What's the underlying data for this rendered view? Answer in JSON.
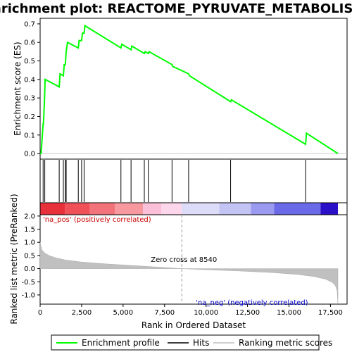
{
  "chart_data": {
    "type": "line",
    "title": "Enrichment plot: REACTOME_PYRUVATE_METABOLISM",
    "xlabel": "Rank in Ordered Dataset",
    "xlim": [
      0,
      18500
    ],
    "x_ticks": [
      0,
      2500,
      5000,
      7500,
      10000,
      12500,
      15000,
      17500
    ],
    "x_tick_labels": [
      "0",
      "2,500",
      "5,000",
      "7,500",
      "10,000",
      "12,500",
      "15,000",
      "17,500"
    ],
    "top_panel": {
      "ylabel": "Enrichment score (ES)",
      "ylim": [
        -0.03,
        0.73
      ],
      "y_ticks": [
        0.0,
        0.1,
        0.2,
        0.3,
        0.4,
        0.5,
        0.6,
        0.7
      ],
      "y_tick_labels": [
        "0.0",
        "0.1",
        "0.2",
        "0.3",
        "0.4",
        "0.5",
        "0.6",
        "0.7"
      ],
      "series": [
        {
          "name": "Enrichment profile",
          "color": "#00ff00",
          "x": [
            0,
            60,
            180,
            200,
            260,
            300,
            1150,
            1200,
            1400,
            1450,
            1520,
            1570,
            1650,
            2300,
            2350,
            2500,
            2550,
            2650,
            2700,
            4870,
            4920,
            5480,
            5530,
            6280,
            6330,
            6520,
            6570,
            7950,
            8000,
            8950,
            9000,
            11480,
            11530,
            16000,
            16050,
            17950
          ],
          "y": [
            0.0,
            0.0,
            0.16,
            0.16,
            0.28,
            0.4,
            0.36,
            0.43,
            0.42,
            0.48,
            0.48,
            0.55,
            0.6,
            0.57,
            0.61,
            0.61,
            0.65,
            0.65,
            0.69,
            0.57,
            0.59,
            0.56,
            0.58,
            0.54,
            0.55,
            0.54,
            0.55,
            0.48,
            0.47,
            0.43,
            0.42,
            0.28,
            0.29,
            0.05,
            0.11,
            0.0
          ]
        }
      ]
    },
    "hits_panel": {
      "series_name": "Hits",
      "hits": [
        180,
        280,
        1150,
        1400,
        1520,
        1570,
        2300,
        2500,
        2650,
        4870,
        5480,
        6280,
        6520,
        7950,
        8950,
        11480,
        16000
      ]
    },
    "bottom_panel": {
      "ylabel": "Ranked list metric (PreRanked)",
      "ylim": [
        -1.35,
        2.05
      ],
      "y_ticks": [
        -1.0,
        -0.5,
        0.0,
        0.5,
        1.0,
        1.5,
        2.0
      ],
      "y_tick_labels": [
        "-1.0",
        "-0.5",
        "0.0",
        "0.5",
        "1.0",
        "1.5",
        "2.0"
      ],
      "series_name": "Ranking metric scores",
      "zero_cross": 8540,
      "zero_cross_label": "Zero cross at 8540",
      "pos_label": "'na_pos' (positively correlated)",
      "neg_label": "'na_neg' (negatively correlated)",
      "pos_color": "#cc0000",
      "neg_color": "#0000cc",
      "x": [
        0,
        100,
        300,
        600,
        1000,
        1500,
        2500,
        4000,
        6000,
        8540,
        10000,
        12000,
        14000,
        15500,
        16500,
        17200,
        17600,
        17800,
        17900,
        17950
      ],
      "y": [
        1.0,
        0.72,
        0.58,
        0.48,
        0.4,
        0.33,
        0.25,
        0.18,
        0.1,
        0.0,
        -0.04,
        -0.09,
        -0.15,
        -0.22,
        -0.3,
        -0.4,
        -0.52,
        -0.65,
        -0.85,
        -1.35
      ]
    },
    "legend": {
      "position": "bottom",
      "entries": [
        {
          "label": "Enrichment profile",
          "color": "#00ff00"
        },
        {
          "label": "Hits",
          "color": "#000000"
        },
        {
          "label": "Ranking metric scores",
          "color": "#c0c0c0"
        }
      ]
    },
    "colorbar": {
      "segments": [
        {
          "from": 0,
          "to": 1500,
          "color": "#e8303a"
        },
        {
          "from": 1500,
          "to": 3000,
          "color": "#f05058"
        },
        {
          "from": 3000,
          "to": 4500,
          "color": "#f2747a"
        },
        {
          "from": 4500,
          "to": 6200,
          "color": "#f7999e"
        },
        {
          "from": 6200,
          "to": 7300,
          "color": "#fbbfd8"
        },
        {
          "from": 7300,
          "to": 8540,
          "color": "#fcd6ea"
        },
        {
          "from": 8540,
          "to": 10800,
          "color": "#dcdcf8"
        },
        {
          "from": 10800,
          "to": 12700,
          "color": "#c4c4f4"
        },
        {
          "from": 12700,
          "to": 14100,
          "color": "#9a9af0"
        },
        {
          "from": 14100,
          "to": 16900,
          "color": "#6a6ae8"
        },
        {
          "from": 16900,
          "to": 17950,
          "color": "#2a10c8"
        }
      ]
    }
  }
}
